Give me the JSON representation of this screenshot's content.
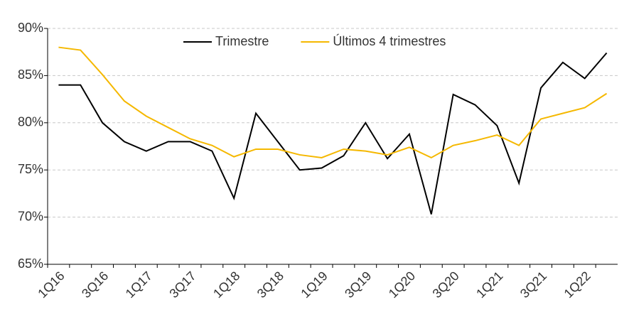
{
  "chart_data": {
    "type": "line",
    "categories": [
      "1Q16",
      null,
      "3Q16",
      null,
      "1Q17",
      null,
      "3Q17",
      null,
      "1Q18",
      null,
      "3Q18",
      null,
      "1Q19",
      null,
      "3Q19",
      null,
      "1Q20",
      null,
      "3Q20",
      null,
      "1Q21",
      null,
      "3Q21",
      null,
      "1Q22",
      null
    ],
    "series": [
      {
        "name": "Trimestre",
        "color": "#000000",
        "values": [
          84,
          84,
          80,
          78,
          77,
          78,
          78,
          77,
          72,
          81,
          78,
          75,
          75.2,
          76.5,
          80,
          76.2,
          78.8,
          70.3,
          83,
          81.9,
          79.7,
          73.6,
          83.7,
          86.4,
          84.7,
          87.4
        ]
      },
      {
        "name": "Últimos 4 trimestres",
        "color": "#f5b800",
        "values": [
          88,
          87.7,
          85.1,
          82.3,
          80.7,
          79.5,
          78.3,
          77.6,
          76.4,
          77.2,
          77.2,
          76.6,
          76.3,
          77.2,
          77,
          76.6,
          77.4,
          76.3,
          77.6,
          78.1,
          78.7,
          77.6,
          80.4,
          81,
          81.6,
          83.1
        ]
      }
    ],
    "ylim": [
      65,
      90
    ],
    "yticks": [
      {
        "value": 65,
        "label": "65%"
      },
      {
        "value": 70,
        "label": "70%"
      },
      {
        "value": 75,
        "label": "75%"
      },
      {
        "value": 80,
        "label": "80%"
      },
      {
        "value": 85,
        "label": "85%"
      },
      {
        "value": 90,
        "label": "90%"
      }
    ],
    "grid": true,
    "legend": "top"
  }
}
